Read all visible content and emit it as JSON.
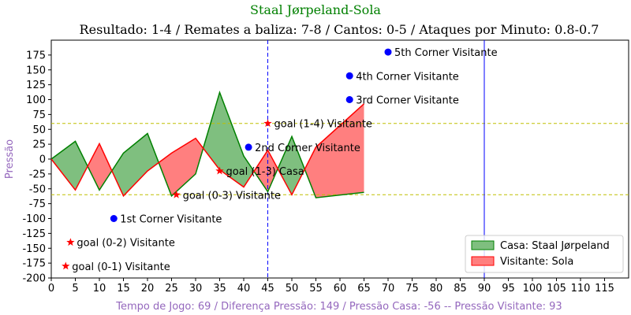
{
  "chart_data": {
    "type": "area",
    "title": "Staal Jørpeland-Sola",
    "subtitle": "Resultado: 1-4 / Remates a baliza: 7-8 / Cantos: 0-5 / Ataques por Minuto: 0.8-0.7",
    "xlabel": "Tempo de Jogo: 69 / Diferença Pressão: 149 / Pressão Casa: -56 -- Pressão Visitante: 93",
    "ylabel": "Pressão",
    "xlim": [
      0,
      120
    ],
    "ylim": [
      -200,
      200
    ],
    "xticks": [
      "0",
      "5",
      "10",
      "15",
      "20",
      "25",
      "30",
      "35",
      "40",
      "45",
      "50",
      "55",
      "60",
      "65",
      "70",
      "75",
      "80",
      "85",
      "90",
      "95",
      "100",
      "105",
      "110",
      "115"
    ],
    "yticks": [
      "175",
      "150",
      "125",
      "100",
      "75",
      "50",
      "25",
      "0",
      "-25",
      "-50",
      "-75",
      "-100",
      "-125",
      "-150",
      "-175",
      "-200"
    ],
    "colors": {
      "casa": "#008000",
      "visitante": "#ff0000",
      "marker": "#0000ff",
      "threshold": "#bfbf00",
      "fill_casa": "#7fbf7f",
      "fill_visitante": "#ff7f7f"
    },
    "series": [
      {
        "name": "Casa: Staal Jørpeland",
        "x": [
          0,
          5,
          10,
          15,
          20,
          25,
          30,
          35,
          40,
          45,
          50,
          55,
          65
        ],
        "values": [
          0,
          30,
          -52,
          10,
          43,
          -62,
          -25,
          112,
          5,
          -55,
          38,
          -65,
          -56
        ]
      },
      {
        "name": "Visitante: Sola",
        "x": [
          0,
          5,
          10,
          15,
          20,
          25,
          30,
          35,
          40,
          45,
          50,
          55,
          65
        ],
        "values": [
          0,
          -52,
          26,
          -62,
          -20,
          10,
          35,
          -18,
          -47,
          15,
          -60,
          20,
          93
        ]
      }
    ],
    "threshold_lines": [
      60,
      -60
    ],
    "vlines": [
      {
        "x": 45,
        "style": "dashed"
      },
      {
        "x": 90,
        "style": "solid"
      }
    ],
    "annotations": [
      {
        "x": 70,
        "y": 180,
        "marker": "dot",
        "label": "5th Corner Visitante"
      },
      {
        "x": 62,
        "y": 140,
        "marker": "dot",
        "label": "4th Corner Visitante"
      },
      {
        "x": 62,
        "y": 100,
        "marker": "dot",
        "label": "3rd Corner Visitante"
      },
      {
        "x": 41,
        "y": 20,
        "marker": "dot",
        "label": "2nd Corner Visitante"
      },
      {
        "x": 13,
        "y": -100,
        "marker": "dot",
        "label": "1st Corner Visitante"
      },
      {
        "x": 45,
        "y": 60,
        "marker": "star",
        "label": "goal (1-4) Visitante"
      },
      {
        "x": 35,
        "y": -20,
        "marker": "star",
        "label": "goal (1-3) Casa"
      },
      {
        "x": 26,
        "y": -60,
        "marker": "star",
        "label": "goal (0-3) Visitante"
      },
      {
        "x": 4,
        "y": -140,
        "marker": "star",
        "label": "goal (0-2) Visitante"
      },
      {
        "x": 3,
        "y": -180,
        "marker": "star",
        "label": "goal (0-1) Visitante"
      }
    ],
    "legend_position": "bottom-right",
    "grid": false
  }
}
